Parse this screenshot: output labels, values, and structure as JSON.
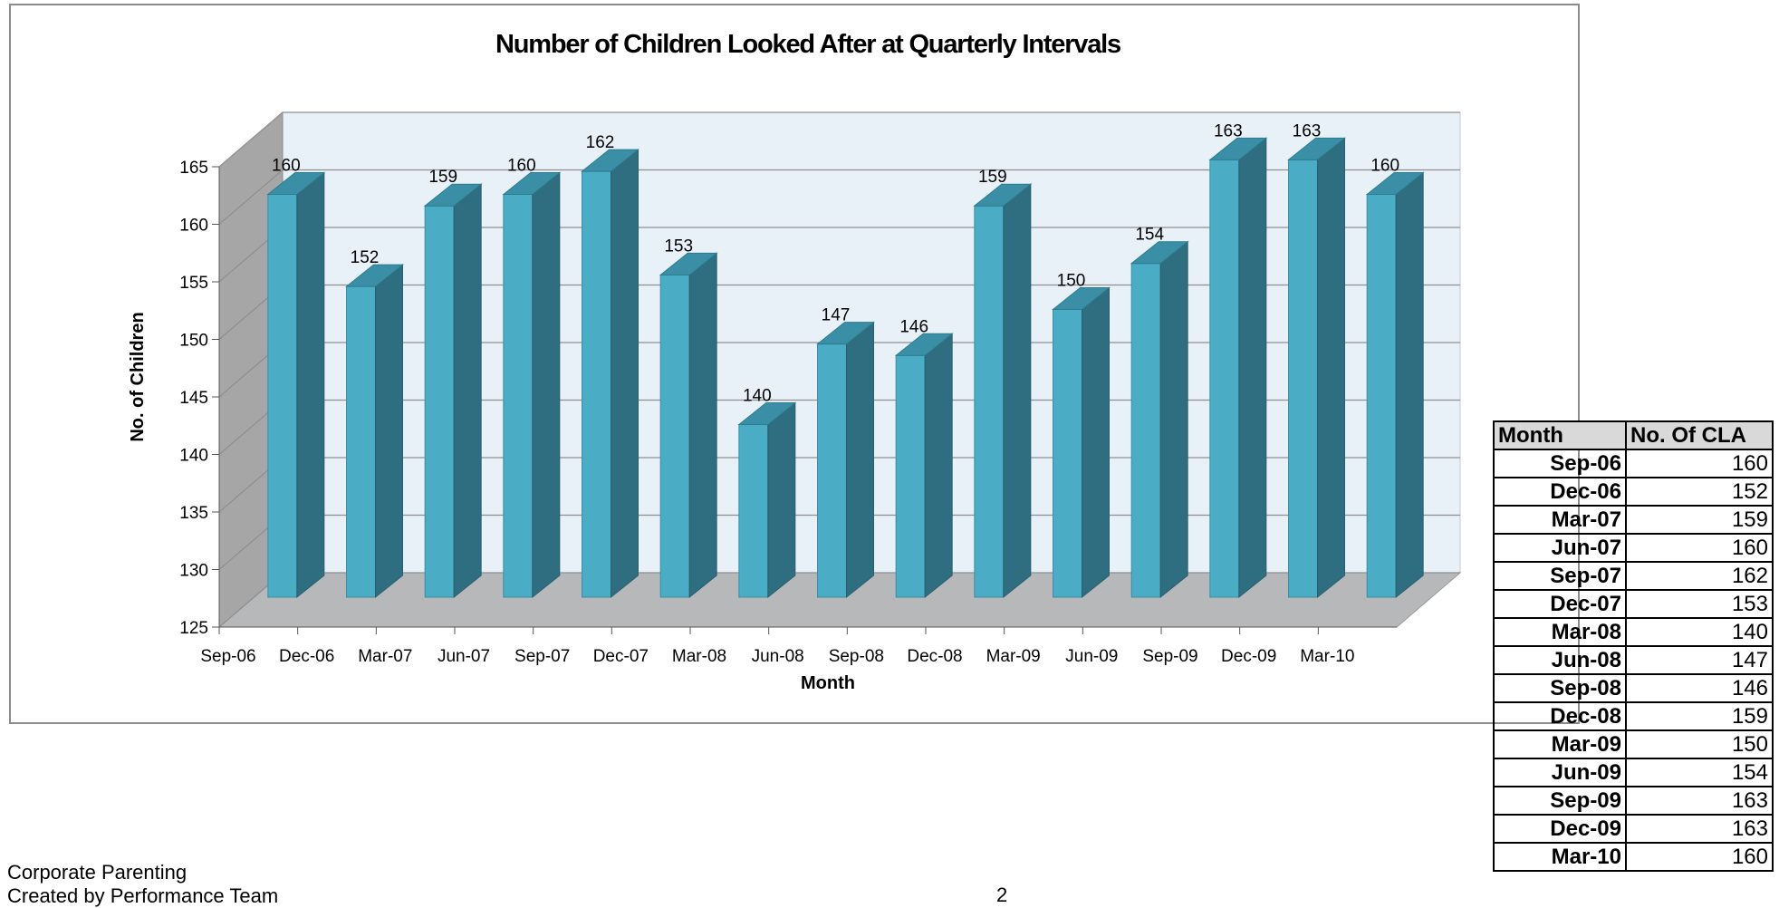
{
  "chart_data": {
    "type": "bar",
    "title": "Number of Children Looked After at Quarterly Intervals",
    "xlabel": "Month",
    "ylabel": "No. of Children",
    "categories": [
      "Sep-06",
      "Dec-06",
      "Mar-07",
      "Jun-07",
      "Sep-07",
      "Dec-07",
      "Mar-08",
      "Jun-08",
      "Sep-08",
      "Dec-08",
      "Mar-09",
      "Jun-09",
      "Sep-09",
      "Dec-09",
      "Mar-10"
    ],
    "values": [
      160,
      152,
      159,
      160,
      162,
      153,
      140,
      147,
      146,
      159,
      150,
      154,
      163,
      163,
      160
    ],
    "ylim": [
      125,
      165
    ],
    "yticks": [
      125,
      130,
      135,
      140,
      145,
      150,
      155,
      160,
      165
    ],
    "grid": true,
    "style": "3d-column",
    "colors": {
      "bar_front": "#4bacc6",
      "bar_side": "#2e6e80",
      "bar_top": "#3a8fa6",
      "wall": "#e9f1f8",
      "floor": "#b6b8ba"
    }
  },
  "table": {
    "headers": [
      "Month",
      "No. Of CLA"
    ],
    "rows": [
      [
        "Sep-06",
        "160"
      ],
      [
        "Dec-06",
        "152"
      ],
      [
        "Mar-07",
        "159"
      ],
      [
        "Jun-07",
        "160"
      ],
      [
        "Sep-07",
        "162"
      ],
      [
        "Dec-07",
        "153"
      ],
      [
        "Mar-08",
        "140"
      ],
      [
        "Jun-08",
        "147"
      ],
      [
        "Sep-08",
        "146"
      ],
      [
        "Dec-08",
        "159"
      ],
      [
        "Mar-09",
        "150"
      ],
      [
        "Jun-09",
        "154"
      ],
      [
        "Sep-09",
        "163"
      ],
      [
        "Dec-09",
        "163"
      ],
      [
        "Mar-10",
        "160"
      ]
    ]
  },
  "footer": {
    "line1": "Corporate Parenting",
    "line2": "Created by Performance Team",
    "page_number": "2"
  }
}
